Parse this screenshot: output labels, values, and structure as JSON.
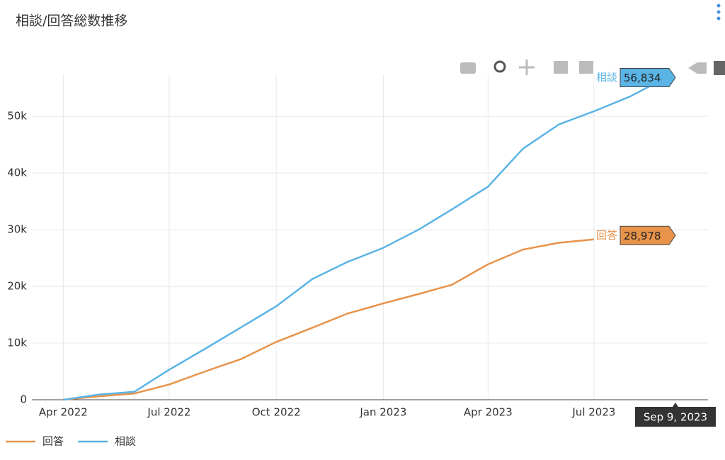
{
  "chart_data": {
    "type": "line",
    "title": "相談/回答総数推移",
    "x": [
      "2022-04",
      "2022-05",
      "2022-06",
      "2022-07",
      "2022-08",
      "2022-09",
      "2022-10",
      "2022-11",
      "2022-12",
      "2023-01",
      "2023-02",
      "2023-03",
      "2023-04",
      "2023-05",
      "2023-06",
      "2023-07",
      "2023-08",
      "2023-09"
    ],
    "series": [
      {
        "name": "回答",
        "color": "#e8934a",
        "values": [
          0,
          600,
          1100,
          2700,
          5000,
          7200,
          10200,
          12700,
          15200,
          17000,
          18700,
          20300,
          23900,
          26500,
          27700,
          28300,
          null,
          null
        ],
        "hover_value": 28978,
        "hover_label": "28,978"
      },
      {
        "name": "相談",
        "color": "#5ab4e5",
        "values": [
          0,
          900,
          1400,
          5300,
          9000,
          12800,
          16500,
          21300,
          24300,
          26800,
          30100,
          33600,
          37600,
          44300,
          48600,
          50900,
          53500,
          56834
        ],
        "hover_value": 56834,
        "hover_label": "56,834"
      }
    ],
    "hover_x": "2023-09-09",
    "hover_x_label": "Sep 9, 2023",
    "xlim": [
      "2022-03-05",
      "2023-10-07"
    ],
    "xticks": [
      {
        "value": "2022-04",
        "label": "Apr 2022"
      },
      {
        "value": "2022-07",
        "label": "Jul 2022"
      },
      {
        "value": "2022-10",
        "label": "Oct 2022"
      },
      {
        "value": "2023-01",
        "label": "Jan 2023"
      },
      {
        "value": "2023-04",
        "label": "Apr 2023"
      },
      {
        "value": "2023-07",
        "label": "Jul 2023"
      }
    ],
    "ylim": [
      0,
      57400
    ],
    "yticks": [
      0,
      {
        "value": 10000,
        "label": "10k"
      },
      {
        "value": 20000,
        "label": "20k"
      },
      {
        "value": 30000,
        "label": "30k"
      },
      {
        "value": 40000,
        "label": "40k"
      },
      {
        "value": 50000,
        "label": "50k"
      }
    ],
    "grid": true
  }
}
